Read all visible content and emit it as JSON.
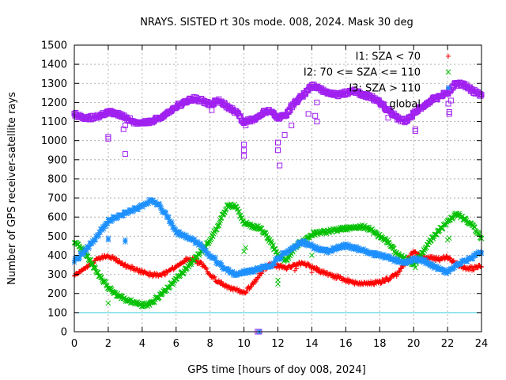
{
  "chart_data": {
    "type": "scatter",
    "title": "NRAYS. SISTED rt 30s mode. 008, 2024. Mask 30 deg",
    "xlabel": "GPS time [hours of doy 008, 2024]",
    "ylabel": "Number of GPS receiver-satellite rays",
    "xlim": [
      0,
      24
    ],
    "ylim": [
      0,
      1500
    ],
    "xticks": [
      0,
      2,
      4,
      6,
      8,
      10,
      12,
      14,
      16,
      18,
      20,
      22,
      24
    ],
    "yticks": [
      0,
      100,
      200,
      300,
      400,
      500,
      600,
      700,
      800,
      900,
      1000,
      1100,
      1200,
      1300,
      1400,
      1500
    ],
    "grid": true,
    "legend_position": "top-right",
    "threshold_line": {
      "y": 100,
      "color": "#40d0e0"
    },
    "series": [
      {
        "name": "I1: SZA < 70",
        "marker": "+",
        "color": "#ff0000",
        "x": [
          0,
          0.5,
          1,
          1.5,
          2,
          2.5,
          3,
          3.5,
          4,
          4.5,
          5,
          5.5,
          6,
          6.5,
          7,
          7.5,
          8,
          8.5,
          9,
          9.5,
          10,
          10.5,
          11,
          11.5,
          12,
          12.5,
          13,
          13.5,
          14,
          14.5,
          15,
          15.5,
          16,
          16.5,
          17,
          17.5,
          18,
          18.5,
          19,
          19.5,
          20,
          20.5,
          21,
          21.5,
          22,
          22.5,
          23,
          23.5,
          24
        ],
        "y": [
          300,
          330,
          360,
          385,
          395,
          375,
          345,
          330,
          315,
          300,
          295,
          310,
          345,
          375,
          380,
          355,
          300,
          260,
          235,
          220,
          205,
          245,
          310,
          350,
          345,
          330,
          350,
          360,
          340,
          315,
          300,
          285,
          270,
          258,
          250,
          255,
          260,
          275,
          300,
          360,
          420,
          390,
          385,
          380,
          390,
          355,
          335,
          330,
          345
        ]
      },
      {
        "name": "I2: 70 <= SZA <= 110",
        "marker": "x",
        "color": "#00c000",
        "x": [
          0,
          0.5,
          1,
          1.5,
          2,
          2.5,
          3,
          3.5,
          4,
          4.5,
          5,
          5.5,
          6,
          6.5,
          7,
          7.5,
          8,
          8.5,
          9,
          9.5,
          10,
          10.5,
          11,
          11.5,
          12,
          12.5,
          13,
          13.5,
          14,
          14.5,
          15,
          15.5,
          16,
          16.5,
          17,
          17.5,
          18,
          18.5,
          19,
          19.5,
          20,
          20.5,
          21,
          21.5,
          22,
          22.5,
          23,
          23.5,
          24
        ],
        "y": [
          470,
          430,
          360,
          290,
          230,
          195,
          170,
          155,
          140,
          145,
          185,
          230,
          275,
          320,
          370,
          420,
          480,
          560,
          660,
          660,
          570,
          550,
          540,
          480,
          400,
          370,
          440,
          480,
          510,
          520,
          525,
          535,
          540,
          545,
          550,
          535,
          500,
          470,
          410,
          380,
          350,
          410,
          480,
          530,
          575,
          620,
          590,
          550,
          490
        ]
      },
      {
        "name": "I3: SZA > 110",
        "marker": "*",
        "color": "#1e90ff",
        "x": [
          0,
          0.5,
          1,
          1.5,
          2,
          2.5,
          3,
          3.5,
          4,
          4.5,
          5,
          5.5,
          6,
          6.5,
          7,
          7.5,
          8,
          8.5,
          9,
          9.5,
          10,
          10.5,
          11,
          11.5,
          12,
          12.5,
          13,
          13.5,
          14,
          14.5,
          15,
          15.5,
          16,
          16.5,
          17,
          17.5,
          18,
          18.5,
          19,
          19.5,
          20,
          20.5,
          21,
          21.5,
          22,
          22.5,
          23,
          23.5,
          24
        ],
        "y": [
          370,
          410,
          460,
          520,
          580,
          600,
          620,
          640,
          660,
          690,
          660,
          600,
          520,
          500,
          480,
          450,
          400,
          360,
          320,
          300,
          310,
          320,
          330,
          345,
          380,
          420,
          450,
          470,
          450,
          430,
          420,
          440,
          450,
          440,
          425,
          410,
          400,
          390,
          370,
          360,
          380,
          375,
          350,
          330,
          310,
          340,
          370,
          390,
          420
        ]
      },
      {
        "name": "global",
        "marker": "square",
        "color": "#a020f0",
        "x": [
          0,
          0.5,
          1,
          1.5,
          2,
          2.5,
          3,
          3.5,
          4,
          4.5,
          5,
          5.5,
          6,
          6.5,
          7,
          7.5,
          8,
          8.5,
          9,
          9.5,
          10,
          10.5,
          11,
          11.5,
          12,
          12.5,
          13,
          13.5,
          14,
          14.5,
          15,
          15.5,
          16,
          16.5,
          17,
          17.5,
          18,
          18.5,
          19,
          19.5,
          20,
          20.5,
          21,
          21.5,
          22,
          22.5,
          23,
          23.5,
          24
        ],
        "y": [
          1140,
          1120,
          1120,
          1130,
          1150,
          1140,
          1120,
          1100,
          1090,
          1100,
          1120,
          1150,
          1180,
          1200,
          1220,
          1210,
          1190,
          1210,
          1180,
          1150,
          1100,
          1110,
          1140,
          1160,
          1120,
          1140,
          1200,
          1240,
          1290,
          1270,
          1250,
          1240,
          1250,
          1260,
          1240,
          1230,
          1200,
          1160,
          1120,
          1100,
          1140,
          1180,
          1210,
          1230,
          1250,
          1300,
          1290,
          1260,
          1240
        ]
      }
    ],
    "outliers": [
      {
        "series": "global",
        "x": [
          2.0,
          2.0,
          3.0,
          2.9,
          3.0,
          8.1,
          10.0,
          10.0,
          10.0,
          10.1,
          12.0,
          12.0,
          12.1,
          12.4,
          12.8,
          13.8,
          14.2,
          14.3,
          14.3,
          18.5,
          20.1,
          20.1,
          22.1,
          22.1,
          22.2
        ],
        "y": [
          1020,
          1010,
          930,
          1060,
          1080,
          1160,
          980,
          950,
          920,
          1080,
          990,
          950,
          870,
          1030,
          1080,
          1140,
          1130,
          1100,
          1200,
          1120,
          1060,
          1050,
          1150,
          1140,
          1210
        ]
      },
      {
        "series": "global",
        "x": [
          10.8,
          10.9
        ],
        "y": [
          0,
          0
        ]
      },
      {
        "series": "I3: SZA > 110",
        "x": [
          2.0,
          2.0,
          3.0,
          3.0,
          10.9
        ],
        "y": [
          490,
          480,
          480,
          470,
          0
        ]
      },
      {
        "series": "I2: 70 <= SZA <= 110",
        "x": [
          2.0,
          10.0,
          10.1,
          12.0,
          12.0,
          14.0,
          22.0,
          22.1,
          20.1
        ],
        "y": [
          150,
          420,
          440,
          250,
          270,
          400,
          480,
          490,
          335
        ]
      },
      {
        "series": "I1: SZA < 70",
        "x": [
          13.0,
          13.1,
          14.0,
          14.3,
          19.0
        ],
        "y": [
          320,
          330,
          310,
          320,
          290
        ]
      }
    ]
  }
}
